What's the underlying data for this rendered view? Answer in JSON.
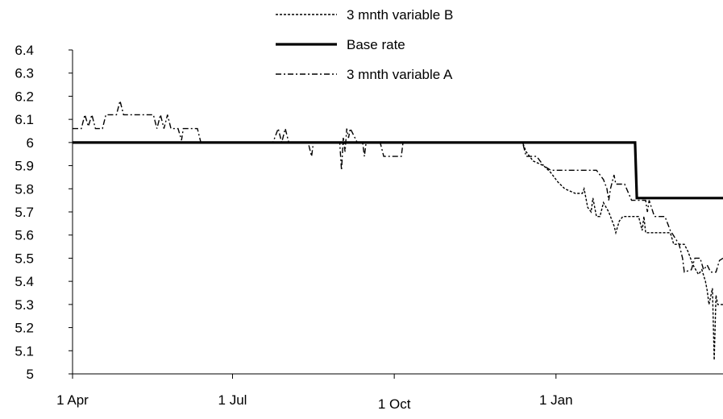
{
  "chart_data": {
    "type": "line",
    "title": "",
    "xlabel": "",
    "ylabel": "",
    "x_ticks": [
      {
        "label": "1 Apr",
        "day": 0
      },
      {
        "label": "1 Jul",
        "day": 91
      },
      {
        "label": "1 Oct",
        "day": 183
      },
      {
        "label": "1 Jan",
        "day": 275
      }
    ],
    "x_range_days": [
      0,
      370
    ],
    "y_ticks": [
      5,
      5.1,
      5.2,
      5.3,
      5.4,
      5.5,
      5.6,
      5.7,
      5.8,
      5.9,
      6,
      6.1,
      6.2,
      6.3,
      6.4
    ],
    "ylim": [
      5,
      6.4
    ],
    "legend_position": "top",
    "series": [
      {
        "name": "3 mnth variable B",
        "style": "dotted",
        "color": "#000000",
        "points": [
          [
            0,
            6.0
          ],
          [
            30,
            6.0
          ],
          [
            60,
            6.0
          ],
          [
            90,
            6.0
          ],
          [
            110,
            6.0
          ],
          [
            150,
            6.0
          ],
          [
            184,
            6.0
          ],
          [
            230,
            6.0
          ],
          [
            256,
            6.0
          ],
          [
            258,
            5.96
          ],
          [
            262,
            5.92
          ],
          [
            268,
            5.9
          ],
          [
            272,
            5.87
          ],
          [
            276,
            5.83
          ],
          [
            280,
            5.8
          ],
          [
            286,
            5.78
          ],
          [
            290,
            5.78
          ],
          [
            291,
            5.8
          ],
          [
            293,
            5.72
          ],
          [
            295,
            5.7
          ],
          [
            296,
            5.76
          ],
          [
            298,
            5.68
          ],
          [
            300,
            5.68
          ],
          [
            302,
            5.74
          ],
          [
            305,
            5.7
          ],
          [
            308,
            5.64
          ],
          [
            309,
            5.61
          ],
          [
            311,
            5.66
          ],
          [
            313,
            5.68
          ],
          [
            318,
            5.68
          ],
          [
            322,
            5.68
          ],
          [
            324,
            5.62
          ],
          [
            325,
            5.68
          ],
          [
            326,
            5.61
          ],
          [
            330,
            5.61
          ],
          [
            340,
            5.61
          ],
          [
            342,
            5.56
          ],
          [
            348,
            5.56
          ],
          [
            350,
            5.53
          ],
          [
            353,
            5.47
          ],
          [
            356,
            5.43
          ],
          [
            358,
            5.45
          ],
          [
            360,
            5.4
          ],
          [
            361,
            5.36
          ],
          [
            362,
            5.3
          ],
          [
            364,
            5.37
          ],
          [
            365,
            5.06
          ],
          [
            366,
            5.34
          ],
          [
            367,
            5.3
          ],
          [
            370,
            5.3
          ]
        ]
      },
      {
        "name": "Base rate",
        "style": "solid-thick",
        "color": "#000000",
        "points": [
          [
            0,
            6.0
          ],
          [
            320,
            6.0
          ],
          [
            321,
            5.76
          ],
          [
            370,
            5.76
          ]
        ]
      },
      {
        "name": "3 mnth variable A",
        "style": "dash-dot",
        "color": "#000000",
        "points": [
          [
            0,
            6.06
          ],
          [
            5,
            6.06
          ],
          [
            7,
            6.12
          ],
          [
            9,
            6.07
          ],
          [
            11,
            6.12
          ],
          [
            13,
            6.06
          ],
          [
            17,
            6.06
          ],
          [
            19,
            6.12
          ],
          [
            25,
            6.12
          ],
          [
            27,
            6.18
          ],
          [
            29,
            6.12
          ],
          [
            44,
            6.12
          ],
          [
            46,
            6.12
          ],
          [
            48,
            6.06
          ],
          [
            50,
            6.12
          ],
          [
            52,
            6.06
          ],
          [
            54,
            6.12
          ],
          [
            56,
            6.06
          ],
          [
            60,
            6.06
          ],
          [
            62,
            6.01
          ],
          [
            63,
            6.06
          ],
          [
            71,
            6.06
          ],
          [
            73,
            6.0
          ],
          [
            90,
            6.0
          ],
          [
            114,
            6.0
          ],
          [
            117,
            6.06
          ],
          [
            119,
            6.0
          ],
          [
            121,
            6.06
          ],
          [
            123,
            6.0
          ],
          [
            134,
            6.0
          ],
          [
            136,
            5.94
          ],
          [
            137,
            6.0
          ],
          [
            140,
            6.0
          ],
          [
            152,
            6.0
          ],
          [
            153,
            5.88
          ],
          [
            154,
            6.02
          ],
          [
            155,
            5.96
          ],
          [
            156,
            6.06
          ],
          [
            157,
            6.02
          ],
          [
            158,
            6.06
          ],
          [
            162,
            6.0
          ],
          [
            165,
            6.0
          ],
          [
            166,
            5.94
          ],
          [
            167,
            6.0
          ],
          [
            175,
            6.0
          ],
          [
            177,
            5.94
          ],
          [
            182,
            5.94
          ],
          [
            187,
            5.94
          ],
          [
            188,
            6.0
          ],
          [
            200,
            6.0
          ],
          [
            230,
            6.0
          ],
          [
            256,
            6.0
          ],
          [
            258,
            5.94
          ],
          [
            264,
            5.94
          ],
          [
            268,
            5.9
          ],
          [
            272,
            5.88
          ],
          [
            298,
            5.88
          ],
          [
            302,
            5.84
          ],
          [
            304,
            5.8
          ],
          [
            305,
            5.75
          ],
          [
            306,
            5.8
          ],
          [
            308,
            5.86
          ],
          [
            309,
            5.82
          ],
          [
            314,
            5.82
          ],
          [
            318,
            5.75
          ],
          [
            322,
            5.75
          ],
          [
            326,
            5.75
          ],
          [
            327,
            5.7
          ],
          [
            328,
            5.75
          ],
          [
            331,
            5.68
          ],
          [
            337,
            5.68
          ],
          [
            340,
            5.62
          ],
          [
            345,
            5.56
          ],
          [
            347,
            5.5
          ],
          [
            348,
            5.44
          ],
          [
            352,
            5.45
          ],
          [
            354,
            5.5
          ],
          [
            357,
            5.5
          ],
          [
            359,
            5.45
          ],
          [
            361,
            5.47
          ],
          [
            363,
            5.44
          ],
          [
            366,
            5.44
          ],
          [
            368,
            5.49
          ],
          [
            370,
            5.5
          ]
        ]
      }
    ]
  }
}
